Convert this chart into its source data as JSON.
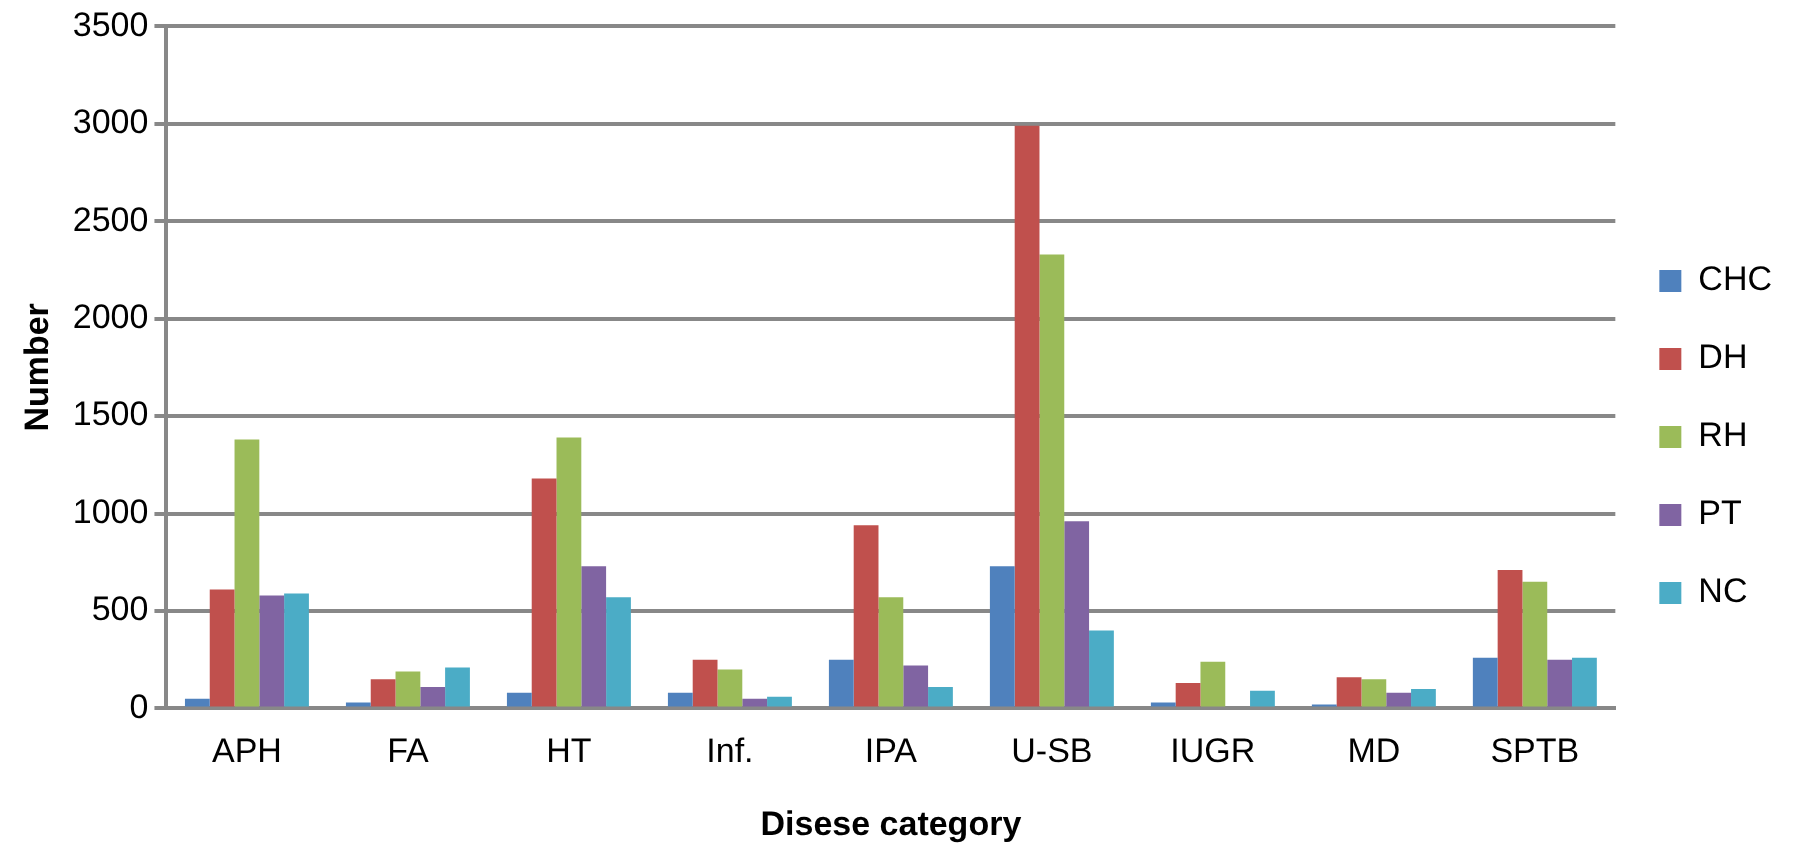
{
  "chart_data": {
    "type": "bar",
    "xlabel": "Disese category",
    "ylabel": "Number",
    "categories": [
      "APH",
      "FA",
      "HT",
      "Inf.",
      "IPA",
      "U-SB",
      "IUGR",
      "MD",
      "SPTB"
    ],
    "series": [
      {
        "name": "CHC",
        "color": "#4f81bd",
        "values": [
          50,
          30,
          80,
          80,
          250,
          730,
          30,
          20,
          260
        ]
      },
      {
        "name": "DH",
        "color": "#c0504d",
        "values": [
          610,
          150,
          1180,
          250,
          940,
          2990,
          130,
          160,
          710
        ]
      },
      {
        "name": "RH",
        "color": "#9bbb59",
        "values": [
          1380,
          190,
          1390,
          200,
          570,
          2330,
          240,
          150,
          650
        ]
      },
      {
        "name": "PT",
        "color": "#8064a2",
        "values": [
          580,
          110,
          730,
          50,
          220,
          960,
          null,
          80,
          250
        ]
      },
      {
        "name": "NC",
        "color": "#4bacc6",
        "values": [
          590,
          210,
          570,
          60,
          110,
          400,
          90,
          100,
          260
        ]
      }
    ],
    "ylim": [
      0,
      3500
    ],
    "yticks": [
      0,
      500,
      1000,
      1500,
      2000,
      2500,
      3000,
      3500
    ],
    "grid": "y",
    "legend": "right"
  }
}
